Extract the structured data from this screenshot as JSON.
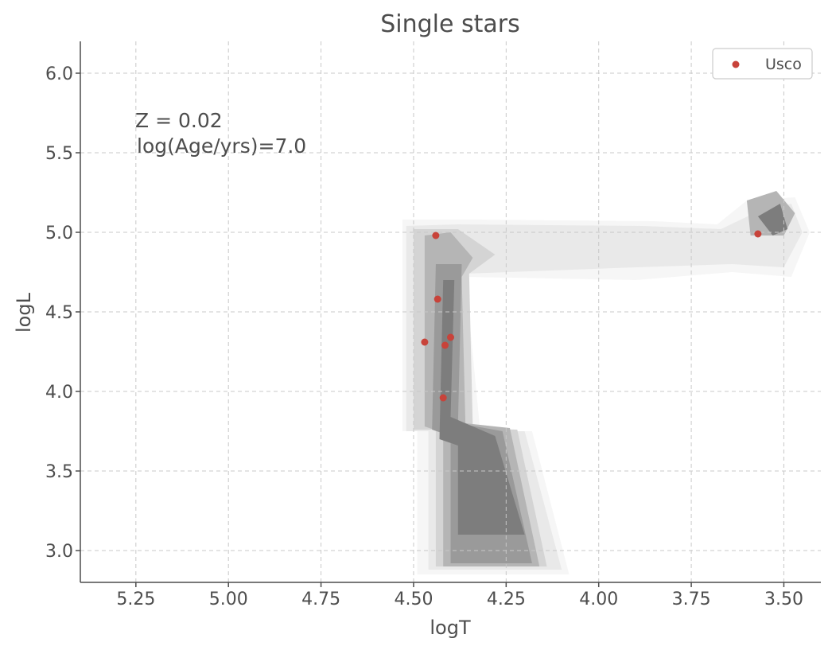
{
  "chart_data": {
    "type": "scatter",
    "title": "Single stars",
    "xlabel": "logT",
    "ylabel": "logL",
    "xlim": [
      5.4,
      3.4
    ],
    "ylim": [
      2.8,
      6.2
    ],
    "x_inverted": true,
    "x_ticks": [
      "5.25",
      "5.00",
      "4.75",
      "4.50",
      "4.25",
      "4.00",
      "3.75",
      "3.50"
    ],
    "y_ticks": [
      "3.0",
      "3.5",
      "4.0",
      "4.5",
      "5.0",
      "5.5",
      "6.0"
    ],
    "grid": true,
    "legend_position": "top-right",
    "annotations": [
      "Z = 0.02",
      "log(Age/yrs)=7.0"
    ],
    "series": [
      {
        "name": "Usco",
        "color": "#c8433a",
        "points": [
          {
            "x": 4.44,
            "y": 4.98
          },
          {
            "x": 4.435,
            "y": 4.58
          },
          {
            "x": 4.47,
            "y": 4.31
          },
          {
            "x": 4.415,
            "y": 4.29
          },
          {
            "x": 4.4,
            "y": 4.34
          },
          {
            "x": 4.42,
            "y": 3.96
          },
          {
            "x": 3.57,
            "y": 4.99
          }
        ]
      }
    ],
    "density_contours": {
      "colors": [
        "#f6f6f6",
        "#e9e9e9",
        "#d4d4d4",
        "#b5b5b5",
        "#9a9a9a",
        "#7d7d7d"
      ],
      "levels": [
        [
          [
            4.49,
            2.85
          ],
          [
            4.49,
            3.75
          ],
          [
            4.53,
            3.75
          ],
          [
            4.53,
            5.08
          ],
          [
            4.34,
            5.08
          ],
          [
            3.85,
            5.07
          ],
          [
            3.68,
            5.05
          ],
          [
            3.6,
            5.2
          ],
          [
            3.47,
            5.22
          ],
          [
            3.43,
            5.0
          ],
          [
            3.48,
            4.72
          ],
          [
            3.64,
            4.75
          ],
          [
            3.9,
            4.7
          ],
          [
            4.36,
            4.72
          ],
          [
            4.32,
            3.75
          ],
          [
            4.18,
            3.75
          ],
          [
            4.08,
            2.85
          ]
        ],
        [
          [
            4.46,
            2.88
          ],
          [
            4.46,
            3.75
          ],
          [
            4.52,
            3.75
          ],
          [
            4.52,
            5.04
          ],
          [
            4.38,
            5.05
          ],
          [
            3.88,
            5.04
          ],
          [
            3.67,
            5.02
          ],
          [
            3.58,
            5.12
          ],
          [
            3.48,
            5.18
          ],
          [
            3.45,
            5.0
          ],
          [
            3.5,
            4.78
          ],
          [
            3.64,
            4.8
          ],
          [
            3.9,
            4.78
          ],
          [
            4.36,
            4.74
          ],
          [
            4.34,
            3.75
          ],
          [
            4.2,
            3.75
          ],
          [
            4.1,
            2.88
          ]
        ],
        [
          [
            4.44,
            2.9
          ],
          [
            4.44,
            3.76
          ],
          [
            4.5,
            3.76
          ],
          [
            4.5,
            5.02
          ],
          [
            4.38,
            5.02
          ],
          [
            4.28,
            4.86
          ],
          [
            4.35,
            4.74
          ],
          [
            4.34,
            3.77
          ],
          [
            4.22,
            3.76
          ],
          [
            4.14,
            2.9
          ]
        ],
        [
          [
            4.42,
            2.9
          ],
          [
            4.42,
            3.74
          ],
          [
            4.47,
            3.78
          ],
          [
            4.47,
            4.98
          ],
          [
            4.4,
            5.0
          ],
          [
            4.34,
            4.84
          ],
          [
            4.37,
            4.72
          ],
          [
            4.36,
            3.8
          ],
          [
            4.24,
            3.77
          ],
          [
            4.16,
            2.9
          ]
        ],
        [
          [
            4.4,
            2.92
          ],
          [
            4.4,
            3.72
          ],
          [
            4.45,
            3.76
          ],
          [
            4.44,
            4.8
          ],
          [
            4.37,
            4.8
          ],
          [
            4.38,
            3.8
          ],
          [
            4.26,
            3.75
          ],
          [
            4.18,
            2.92
          ]
        ],
        [
          [
            4.38,
            3.1
          ],
          [
            4.38,
            3.66
          ],
          [
            4.43,
            3.7
          ],
          [
            4.42,
            4.7
          ],
          [
            4.39,
            4.7
          ],
          [
            4.4,
            3.84
          ],
          [
            4.28,
            3.72
          ],
          [
            4.2,
            3.1
          ]
        ]
      ],
      "secondary_levels": [
        [
          [
            3.6,
            5.2
          ],
          [
            3.52,
            5.26
          ],
          [
            3.47,
            5.12
          ],
          [
            3.5,
            4.98
          ],
          [
            3.59,
            4.98
          ]
        ],
        [
          [
            3.57,
            5.1
          ],
          [
            3.51,
            5.18
          ],
          [
            3.49,
            5.02
          ],
          [
            3.53,
            4.98
          ]
        ]
      ]
    }
  }
}
